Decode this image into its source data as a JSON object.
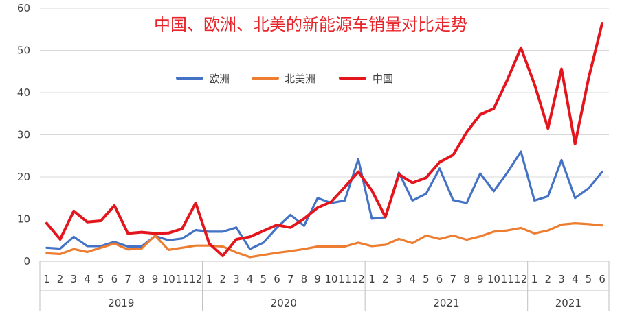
{
  "chart_data": {
    "type": "line",
    "title": "中国、欧洲、北美的新能源车销量对比走势",
    "ylim": [
      0,
      60
    ],
    "yticks": [
      0,
      10,
      20,
      30,
      40,
      50,
      60
    ],
    "x_month_labels": [
      "1",
      "2",
      "3",
      "4",
      "5",
      "6",
      "7",
      "8",
      "9",
      "10",
      "11",
      "12",
      "1",
      "2",
      "3",
      "4",
      "5",
      "6",
      "7",
      "8",
      "9",
      "10",
      "11",
      "12",
      "1",
      "2",
      "3",
      "4",
      "5",
      "6",
      "7",
      "8",
      "9",
      "10",
      "11",
      "12",
      "1",
      "2",
      "3",
      "4",
      "5",
      "6"
    ],
    "year_groups": [
      {
        "label": "2019",
        "months": 12
      },
      {
        "label": "2020",
        "months": 12
      },
      {
        "label": "2021",
        "months": 12
      },
      {
        "label": "2021",
        "months": 6
      }
    ],
    "grid": true,
    "legend_position": "top-left inside",
    "series": [
      {
        "name": "欧洲",
        "color": "#4472c4",
        "values": [
          3.2,
          3.0,
          5.8,
          3.6,
          3.6,
          4.6,
          3.5,
          3.5,
          6.0,
          5.0,
          5.4,
          7.4,
          7.0,
          7.0,
          8.0,
          2.9,
          4.4,
          8.0,
          11.0,
          8.4,
          15.0,
          13.8,
          14.4,
          24.2,
          10.1,
          10.4,
          21.0,
          14.4,
          16.0,
          22.0,
          14.5,
          13.8,
          20.8,
          16.6,
          21.0,
          26.0,
          14.4,
          15.4,
          24.0,
          15.0,
          17.3,
          21.2
        ]
      },
      {
        "name": "北美洲",
        "color": "#ed7d31",
        "values": [
          1.9,
          1.7,
          2.9,
          2.2,
          3.2,
          4.2,
          2.8,
          3.0,
          6.1,
          2.7,
          3.2,
          3.7,
          3.7,
          3.5,
          2.1,
          1.0,
          1.5,
          2.0,
          2.4,
          2.9,
          3.5,
          3.5,
          3.5,
          4.4,
          3.6,
          3.9,
          5.3,
          4.3,
          6.1,
          5.3,
          6.1,
          5.1,
          5.9,
          7.0,
          7.3,
          7.9,
          6.6,
          7.3,
          8.7,
          9.0,
          8.8,
          8.5
        ]
      },
      {
        "name": "中国",
        "color": "#e3151d",
        "values": [
          9.0,
          5.2,
          11.9,
          9.3,
          9.6,
          13.2,
          6.6,
          6.9,
          6.6,
          6.7,
          7.7,
          13.8,
          4.2,
          1.3,
          5.2,
          5.8,
          7.2,
          8.6,
          8.0,
          10.1,
          12.7,
          14.1,
          17.6,
          21.2,
          16.8,
          10.5,
          20.6,
          18.6,
          19.8,
          23.5,
          25.2,
          30.6,
          34.8,
          36.2,
          43.0,
          50.6,
          42.0,
          31.5,
          45.6,
          27.8,
          43.4,
          56.4
        ]
      }
    ]
  }
}
